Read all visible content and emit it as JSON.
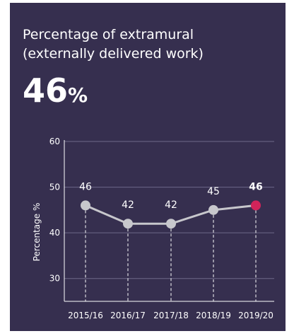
{
  "title": "Percentage of extramural\n(externally delivered work)",
  "headline": {
    "value": "46",
    "unit": "%"
  },
  "colors": {
    "background": "#362f4f",
    "line": "#c7c7cc",
    "highlight": "#d1245a",
    "text": "#ffffff",
    "grid": "#6e6888"
  },
  "chart_data": {
    "type": "line",
    "categories": [
      "2015/16",
      "2016/17",
      "2017/18",
      "2018/19",
      "2019/20"
    ],
    "values": [
      46,
      42,
      42,
      45,
      46
    ],
    "data_labels": [
      "46",
      "42",
      "42",
      "45",
      "46"
    ],
    "highlight_index": 4,
    "xlabel": "",
    "ylabel": "Percentage %",
    "ylim": [
      25,
      60
    ],
    "yticks": [
      30,
      40,
      50,
      60
    ],
    "grid": true,
    "drop_lines": true
  }
}
